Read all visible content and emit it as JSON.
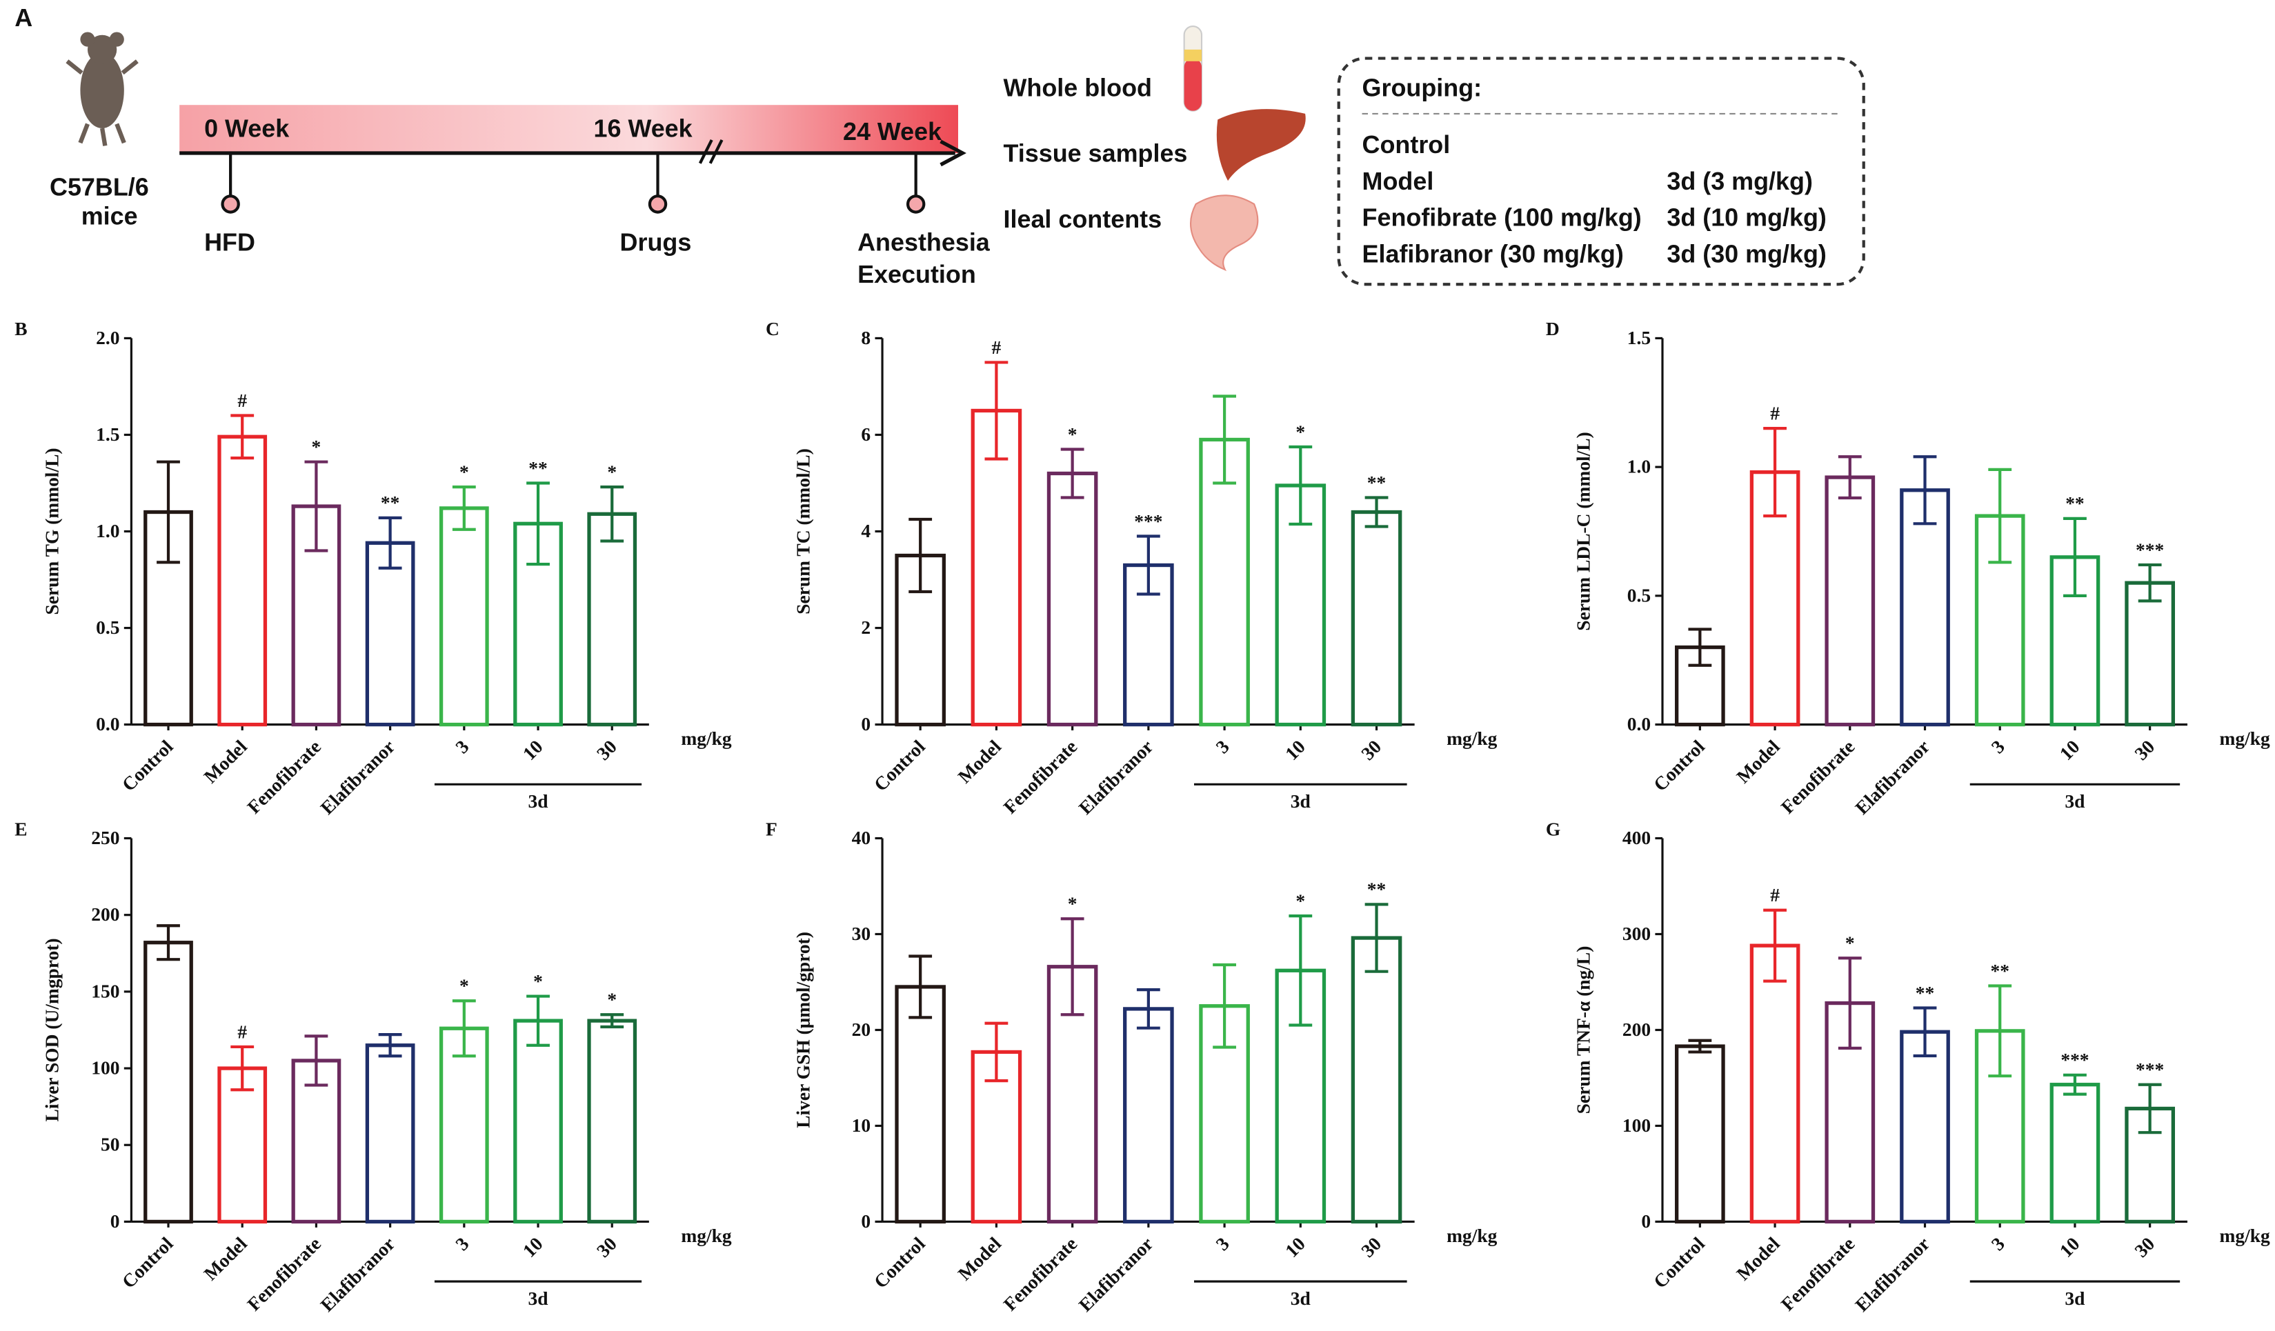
{
  "panel_a": {
    "label": "A",
    "strain": [
      "C57BL/6",
      "mice"
    ],
    "timeline": [
      "0 Week",
      "16 Week",
      "24 Week"
    ],
    "events": [
      "HFD",
      "Drugs"
    ],
    "final_event": [
      "Anesthesia",
      "Execution"
    ],
    "samples": [
      "Whole blood",
      "Tissue samples",
      "Ileal contents"
    ],
    "grouping": {
      "title": "Grouping:",
      "left": [
        "Control",
        "Model",
        "Fenofibrate (100 mg/kg)",
        "Elafibranor (30 mg/kg)"
      ],
      "right": [
        "3d (3 mg/kg)",
        "3d (10 mg/kg)",
        "3d (30 mg/kg)"
      ]
    }
  },
  "chart_data": [
    {
      "type": "bar",
      "panel": "B",
      "y_label": "Serum TG (mmol/L)",
      "categories": [
        "Control",
        "Model",
        "Fenofibrate",
        "Elafibranor",
        "3",
        "10",
        "30"
      ],
      "group_label": "3d",
      "unit_label": "mg/kg",
      "values": [
        1.1,
        1.49,
        1.13,
        0.94,
        1.12,
        1.04,
        1.09
      ],
      "errors": [
        0.26,
        0.11,
        0.23,
        0.13,
        0.11,
        0.21,
        0.14
      ],
      "annotations": [
        null,
        "#",
        "*",
        "**",
        "*",
        "**",
        "*"
      ],
      "colors": [
        "#231815",
        "#e8262a",
        "#6b2a5e",
        "#1f2f6b",
        "#3ab54a",
        "#1f9b48",
        "#1a6b3a"
      ],
      "ylim": [
        0,
        2
      ],
      "yticks": [
        {
          "value": 0,
          "label": "0.0"
        },
        0.5,
        {
          "value": 1,
          "label": "1.0"
        },
        1.5,
        {
          "value": 2,
          "label": "2.0"
        }
      ]
    },
    {
      "type": "bar",
      "panel": "C",
      "y_label": "Serum TC (mmol/L)",
      "categories": [
        "Control",
        "Model",
        "Fenofibrate",
        "Elafibranor",
        "3",
        "10",
        "30"
      ],
      "group_label": "3d",
      "unit_label": "mg/kg",
      "values": [
        3.5,
        6.5,
        5.2,
        3.3,
        5.9,
        4.95,
        4.4
      ],
      "errors": [
        0.75,
        1.0,
        0.5,
        0.6,
        0.9,
        0.8,
        0.3
      ],
      "annotations": [
        null,
        "#",
        "*",
        "***",
        null,
        "*",
        "**"
      ],
      "colors": [
        "#231815",
        "#e8262a",
        "#6b2a5e",
        "#1f2f6b",
        "#3ab54a",
        "#1f9b48",
        "#1a6b3a"
      ],
      "ylim": [
        0,
        8
      ],
      "yticks": [
        0,
        2,
        4,
        6,
        8
      ]
    },
    {
      "type": "bar",
      "panel": "D",
      "y_label": "Serum LDL-C (mmol/L)",
      "categories": [
        "Control",
        "Model",
        "Fenofibrate",
        "Elafibranor",
        "3",
        "10",
        "30"
      ],
      "group_label": "3d",
      "unit_label": "mg/kg",
      "values": [
        0.3,
        0.98,
        0.96,
        0.91,
        0.81,
        0.65,
        0.55
      ],
      "errors": [
        0.07,
        0.17,
        0.08,
        0.13,
        0.18,
        0.15,
        0.07
      ],
      "annotations": [
        null,
        "#",
        null,
        null,
        null,
        "**",
        "***"
      ],
      "colors": [
        "#231815",
        "#e8262a",
        "#6b2a5e",
        "#1f2f6b",
        "#3ab54a",
        "#1f9b48",
        "#1a6b3a"
      ],
      "ylim": [
        0,
        1.5
      ],
      "yticks": [
        {
          "value": 0,
          "label": "0.0"
        },
        0.5,
        {
          "value": 1,
          "label": "1.0"
        },
        1.5
      ]
    },
    {
      "type": "bar",
      "panel": "E",
      "y_label": "Liver SOD (U/mgprot)",
      "categories": [
        "Control",
        "Model",
        "Fenofibrate",
        "Elafibranor",
        "3",
        "10",
        "30"
      ],
      "group_label": "3d",
      "unit_label": "mg/kg",
      "values": [
        182,
        100,
        105,
        115,
        126,
        131,
        131
      ],
      "errors": [
        11,
        14,
        16,
        7,
        18,
        16,
        4
      ],
      "annotations": [
        null,
        "#",
        null,
        null,
        "*",
        "*",
        "*"
      ],
      "colors": [
        "#231815",
        "#e8262a",
        "#6b2a5e",
        "#1f2f6b",
        "#3ab54a",
        "#1f9b48",
        "#1a6b3a"
      ],
      "ylim": [
        0,
        250
      ],
      "yticks": [
        0,
        50,
        100,
        150,
        200,
        250
      ]
    },
    {
      "type": "bar",
      "panel": "F",
      "y_label": "Liver GSH (μmol/gprot)",
      "categories": [
        "Control",
        "Model",
        "Fenofibrate",
        "Elafibranor",
        "3",
        "10",
        "30"
      ],
      "group_label": "3d",
      "unit_label": "mg/kg",
      "values": [
        24.5,
        17.7,
        26.6,
        22.2,
        22.5,
        26.2,
        29.6
      ],
      "errors": [
        3.2,
        3,
        5,
        2,
        4.3,
        5.7,
        3.5
      ],
      "annotations": [
        null,
        null,
        "*",
        null,
        null,
        "*",
        "**"
      ],
      "colors": [
        "#231815",
        "#e8262a",
        "#6b2a5e",
        "#1f2f6b",
        "#3ab54a",
        "#1f9b48",
        "#1a6b3a"
      ],
      "ylim": [
        0,
        40
      ],
      "yticks": [
        0,
        10,
        20,
        30,
        40
      ]
    },
    {
      "type": "bar",
      "panel": "G",
      "y_label": "Serum TNF-α (ng/L)",
      "categories": [
        "Control",
        "Model",
        "Fenofibrate",
        "Elafibranor",
        "3",
        "10",
        "30"
      ],
      "group_label": "3d",
      "unit_label": "mg/kg",
      "values": [
        183,
        288,
        228,
        198,
        199,
        143,
        118
      ],
      "errors": [
        6,
        37,
        47,
        25,
        47,
        10,
        25
      ],
      "annotations": [
        null,
        "#",
        "*",
        "**",
        "**",
        "***",
        "***"
      ],
      "colors": [
        "#231815",
        "#e8262a",
        "#6b2a5e",
        "#1f2f6b",
        "#3ab54a",
        "#1f9b48",
        "#1a6b3a"
      ],
      "ylim": [
        0,
        400
      ],
      "yticks": [
        0,
        100,
        200,
        300,
        400
      ]
    }
  ]
}
